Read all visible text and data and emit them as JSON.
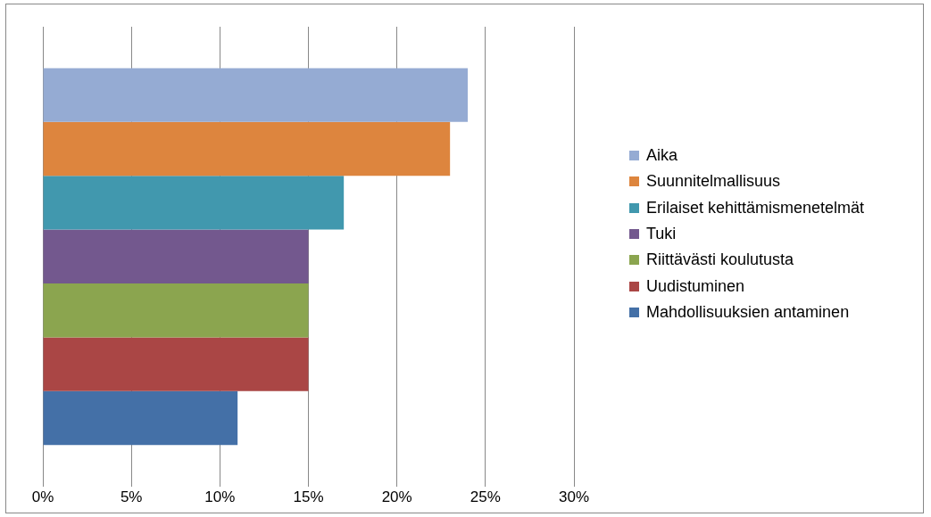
{
  "chart_data": {
    "type": "bar",
    "orientation": "horizontal",
    "categories": [
      null
    ],
    "series": [
      {
        "name": "Aika",
        "color": "#95abd3",
        "values": [
          24
        ]
      },
      {
        "name": "Suunnitelmallisuus",
        "color": "#dd853e",
        "values": [
          23
        ]
      },
      {
        "name": "Erilaiset kehittämismenetelmät",
        "color": "#4198ae",
        "values": [
          17
        ]
      },
      {
        "name": "Tuki",
        "color": "#73588e",
        "values": [
          15
        ]
      },
      {
        "name": "Riittävästi koulutusta",
        "color": "#8ba54f",
        "values": [
          15
        ]
      },
      {
        "name": "Uudistuminen",
        "color": "#aa4645",
        "values": [
          15
        ]
      },
      {
        "name": "Mahdollisuuksien antaminen",
        "color": "#4470a7",
        "values": [
          11
        ]
      }
    ],
    "xlim": [
      0,
      30
    ],
    "xticks": [
      {
        "value": 0,
        "label": "0%"
      },
      {
        "value": 5,
        "label": "5%"
      },
      {
        "value": 10,
        "label": "10%"
      },
      {
        "value": 15,
        "label": "15%"
      },
      {
        "value": 20,
        "label": "20%"
      },
      {
        "value": 25,
        "label": "25%"
      },
      {
        "value": 30,
        "label": "30%"
      }
    ],
    "grid": "x",
    "legend": "right"
  }
}
